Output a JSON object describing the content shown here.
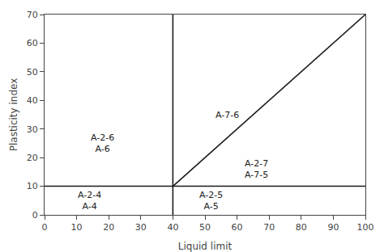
{
  "chart_data": {
    "type": "line",
    "xlabel": "Liquid limit",
    "ylabel": "Plasticity index",
    "xlim": [
      0,
      100
    ],
    "ylim": [
      0,
      70
    ],
    "xticks": [
      0,
      10,
      20,
      30,
      40,
      50,
      60,
      70,
      80,
      90,
      100
    ],
    "yticks": [
      0,
      10,
      20,
      30,
      40,
      50,
      60,
      70
    ],
    "grid": false,
    "color": "#1a1a1a",
    "series": [
      {
        "x": [
          0,
          100
        ],
        "values": [
          10,
          10
        ]
      },
      {
        "x": [
          40,
          40
        ],
        "values": [
          0,
          70
        ]
      },
      {
        "x": [
          40,
          100
        ],
        "values": [
          10,
          70
        ]
      }
    ],
    "annotations": [
      {
        "text": "A-2-6\nA-6",
        "x": 18,
        "y": 25
      },
      {
        "text": "A-7-6",
        "x": 57,
        "y": 35
      },
      {
        "text": "A-2-7\nA-7-5",
        "x": 66,
        "y": 16
      },
      {
        "text": "A-2-4\nA-4",
        "x": 14,
        "y": 5
      },
      {
        "text": "A-2-5\nA-5",
        "x": 52,
        "y": 5
      }
    ]
  }
}
